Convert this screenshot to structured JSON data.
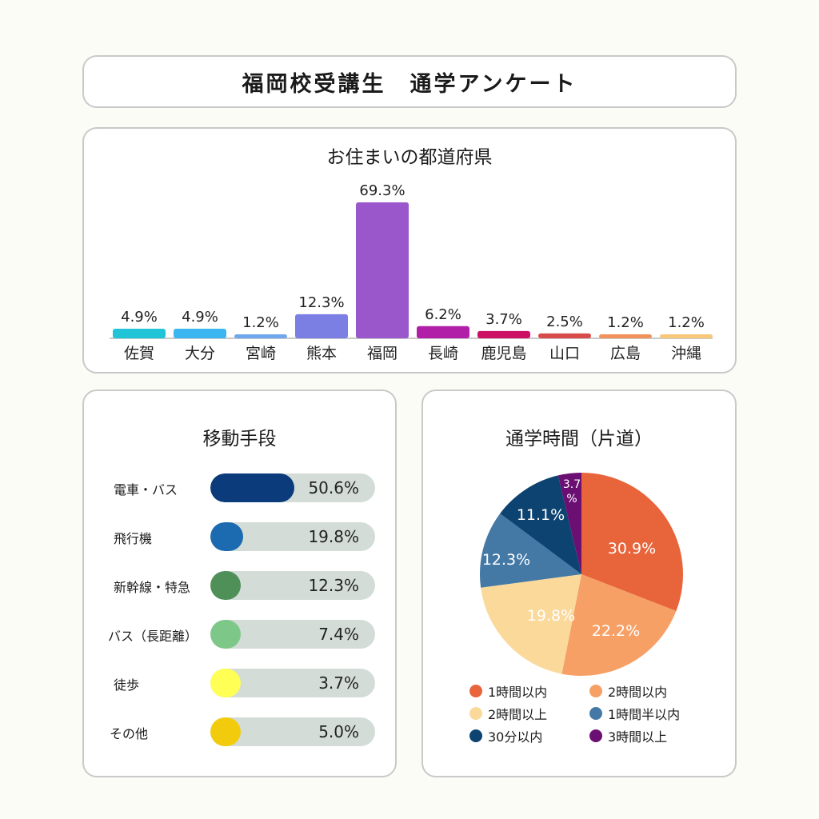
{
  "header": {
    "title": "福岡校受講生　通学アンケート"
  },
  "chart_data": [
    {
      "type": "bar",
      "title": "お住まいの都道府県",
      "categories": [
        "佐賀",
        "大分",
        "宮崎",
        "熊本",
        "福岡",
        "長崎",
        "鹿児島",
        "山口",
        "広島",
        "沖縄"
      ],
      "values": [
        4.9,
        4.9,
        1.2,
        12.3,
        69.3,
        6.2,
        3.7,
        2.5,
        1.2,
        1.2
      ],
      "value_labels": [
        "4.9%",
        "4.9%",
        "1.2%",
        "12.3%",
        "69.3%",
        "6.2%",
        "3.7%",
        "2.5%",
        "1.2%",
        "1.2%"
      ],
      "colors": [
        "#20c4d6",
        "#3cb6f0",
        "#6ea7ee",
        "#7b7fe4",
        "#9a57cb",
        "#b11fa8",
        "#cc1165",
        "#d94a4a",
        "#f0925a",
        "#f7c77a"
      ],
      "ylim": [
        0,
        69.3
      ],
      "axis_color": "#c9c9c9"
    },
    {
      "type": "bar",
      "orientation": "horizontal",
      "title": "移動手段",
      "categories": [
        "電車・バス",
        "飛行機",
        "新幹線・特急",
        "バス（長距離）",
        "徒歩",
        "その他"
      ],
      "values": [
        50.6,
        19.8,
        12.3,
        7.4,
        3.7,
        5.0
      ],
      "value_labels": [
        "50.6%",
        "19.8%",
        "12.3%",
        "7.4%",
        "3.7%",
        "5.0%"
      ],
      "colors": [
        "#0b3b7a",
        "#1c6bb0",
        "#4f8f58",
        "#7dc889",
        "#ffff55",
        "#f2cc0c"
      ],
      "track_color": "#d4dcd7"
    },
    {
      "type": "pie",
      "title": "通学時間（片道）",
      "labels": [
        "1時間以内",
        "2時間以内",
        "2時間以上",
        "1時間半以内",
        "30分以内",
        "3時間以上"
      ],
      "values": [
        30.9,
        22.2,
        19.8,
        12.3,
        11.1,
        3.7
      ],
      "value_labels": [
        "30.9%",
        "22.2%",
        "19.8%",
        "12.3%",
        "11.1%",
        "3.7\n%"
      ],
      "colors": [
        "#e8643a",
        "#f7a066",
        "#fbd99b",
        "#4479a5",
        "#0d4370",
        "#6b0f73"
      ],
      "label_colors": [
        "#ffffff",
        "#ffffff",
        "#ffffff",
        "#ffffff",
        "#ffffff",
        "#ffffff"
      ],
      "legend_position": "bottom"
    }
  ]
}
